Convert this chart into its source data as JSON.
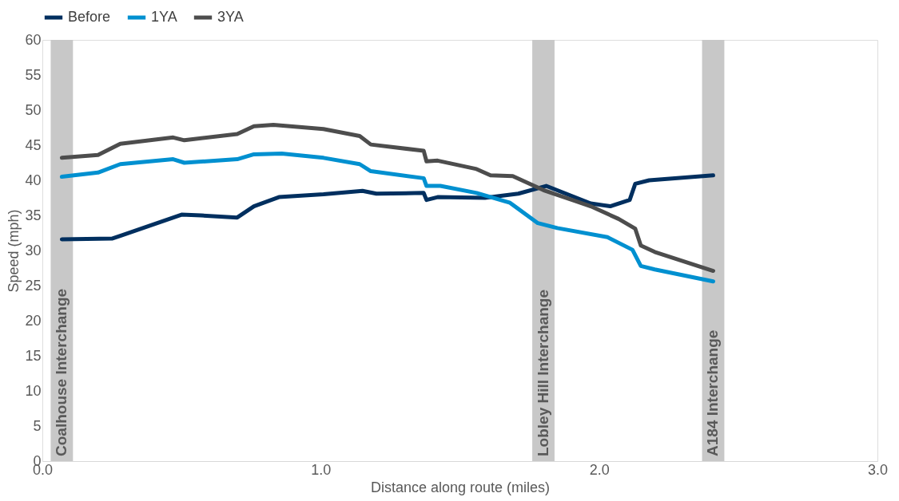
{
  "chart_data": {
    "type": "line",
    "xlabel": "Distance along route (miles)",
    "ylabel": "Speed (mph)",
    "xlim": [
      0,
      3
    ],
    "xticks": [
      {
        "value": 0,
        "label": "0.0"
      },
      {
        "value": 1,
        "label": "1.0"
      },
      {
        "value": 2,
        "label": "2.0"
      },
      {
        "value": 3,
        "label": "3.0"
      }
    ],
    "ylim": [
      0,
      60
    ],
    "yticks": [
      0,
      5,
      10,
      15,
      20,
      25,
      30,
      35,
      40,
      45,
      50,
      55,
      60
    ],
    "grid": false,
    "legend": "top",
    "marker": "none",
    "line_style": "solid",
    "bands": [
      {
        "axis": "x",
        "from": 0.03,
        "to": 0.11,
        "label": "Coalhouse Interchange",
        "color": "#c8c8c8"
      },
      {
        "axis": "x",
        "from": 1.76,
        "to": 1.84,
        "label": "Lobley Hill Interchange",
        "color": "#c8c8c8"
      },
      {
        "axis": "x",
        "from": 2.37,
        "to": 2.45,
        "label": "A184 Interchange",
        "color": "#c8c8c8"
      }
    ],
    "series": [
      {
        "name": "Before",
        "color": "#002f5f",
        "x": [
          0.07,
          0.25,
          0.28,
          0.5,
          0.57,
          0.7,
          0.76,
          0.85,
          1.01,
          1.15,
          1.2,
          1.37,
          1.38,
          1.42,
          1.59,
          1.71,
          1.81,
          1.97,
          2.04,
          2.11,
          2.13,
          2.18,
          2.41
        ],
        "values": [
          31.6,
          31.7,
          32.1,
          35.1,
          35.0,
          34.7,
          36.3,
          37.6,
          38.0,
          38.5,
          38.1,
          38.2,
          37.2,
          37.6,
          37.5,
          38.1,
          39.2,
          36.7,
          36.3,
          37.2,
          39.5,
          40.0,
          40.7
        ]
      },
      {
        "name": "1YA",
        "color": "#0090d0",
        "x": [
          0.07,
          0.2,
          0.28,
          0.47,
          0.51,
          0.7,
          0.76,
          0.86,
          1.01,
          1.14,
          1.18,
          1.37,
          1.38,
          1.43,
          1.56,
          1.68,
          1.78,
          1.85,
          2.03,
          2.12,
          2.15,
          2.2,
          2.41
        ],
        "values": [
          40.5,
          41.1,
          42.3,
          43.0,
          42.5,
          43.0,
          43.7,
          43.8,
          43.2,
          42.3,
          41.3,
          40.3,
          39.2,
          39.2,
          38.2,
          36.8,
          33.9,
          33.2,
          31.9,
          30.1,
          27.8,
          27.3,
          25.6
        ]
      },
      {
        "name": "3YA",
        "color": "#4d4d4d",
        "x": [
          0.07,
          0.2,
          0.28,
          0.47,
          0.51,
          0.7,
          0.76,
          0.83,
          1.01,
          1.14,
          1.18,
          1.37,
          1.38,
          1.42,
          1.56,
          1.61,
          1.69,
          1.8,
          1.97,
          2.07,
          2.13,
          2.15,
          2.2,
          2.41
        ],
        "values": [
          43.2,
          43.6,
          45.2,
          46.1,
          45.7,
          46.6,
          47.7,
          47.9,
          47.3,
          46.3,
          45.1,
          44.2,
          42.7,
          42.8,
          41.6,
          40.7,
          40.6,
          38.6,
          36.3,
          34.5,
          33.1,
          30.7,
          29.8,
          27.1
        ]
      }
    ]
  }
}
